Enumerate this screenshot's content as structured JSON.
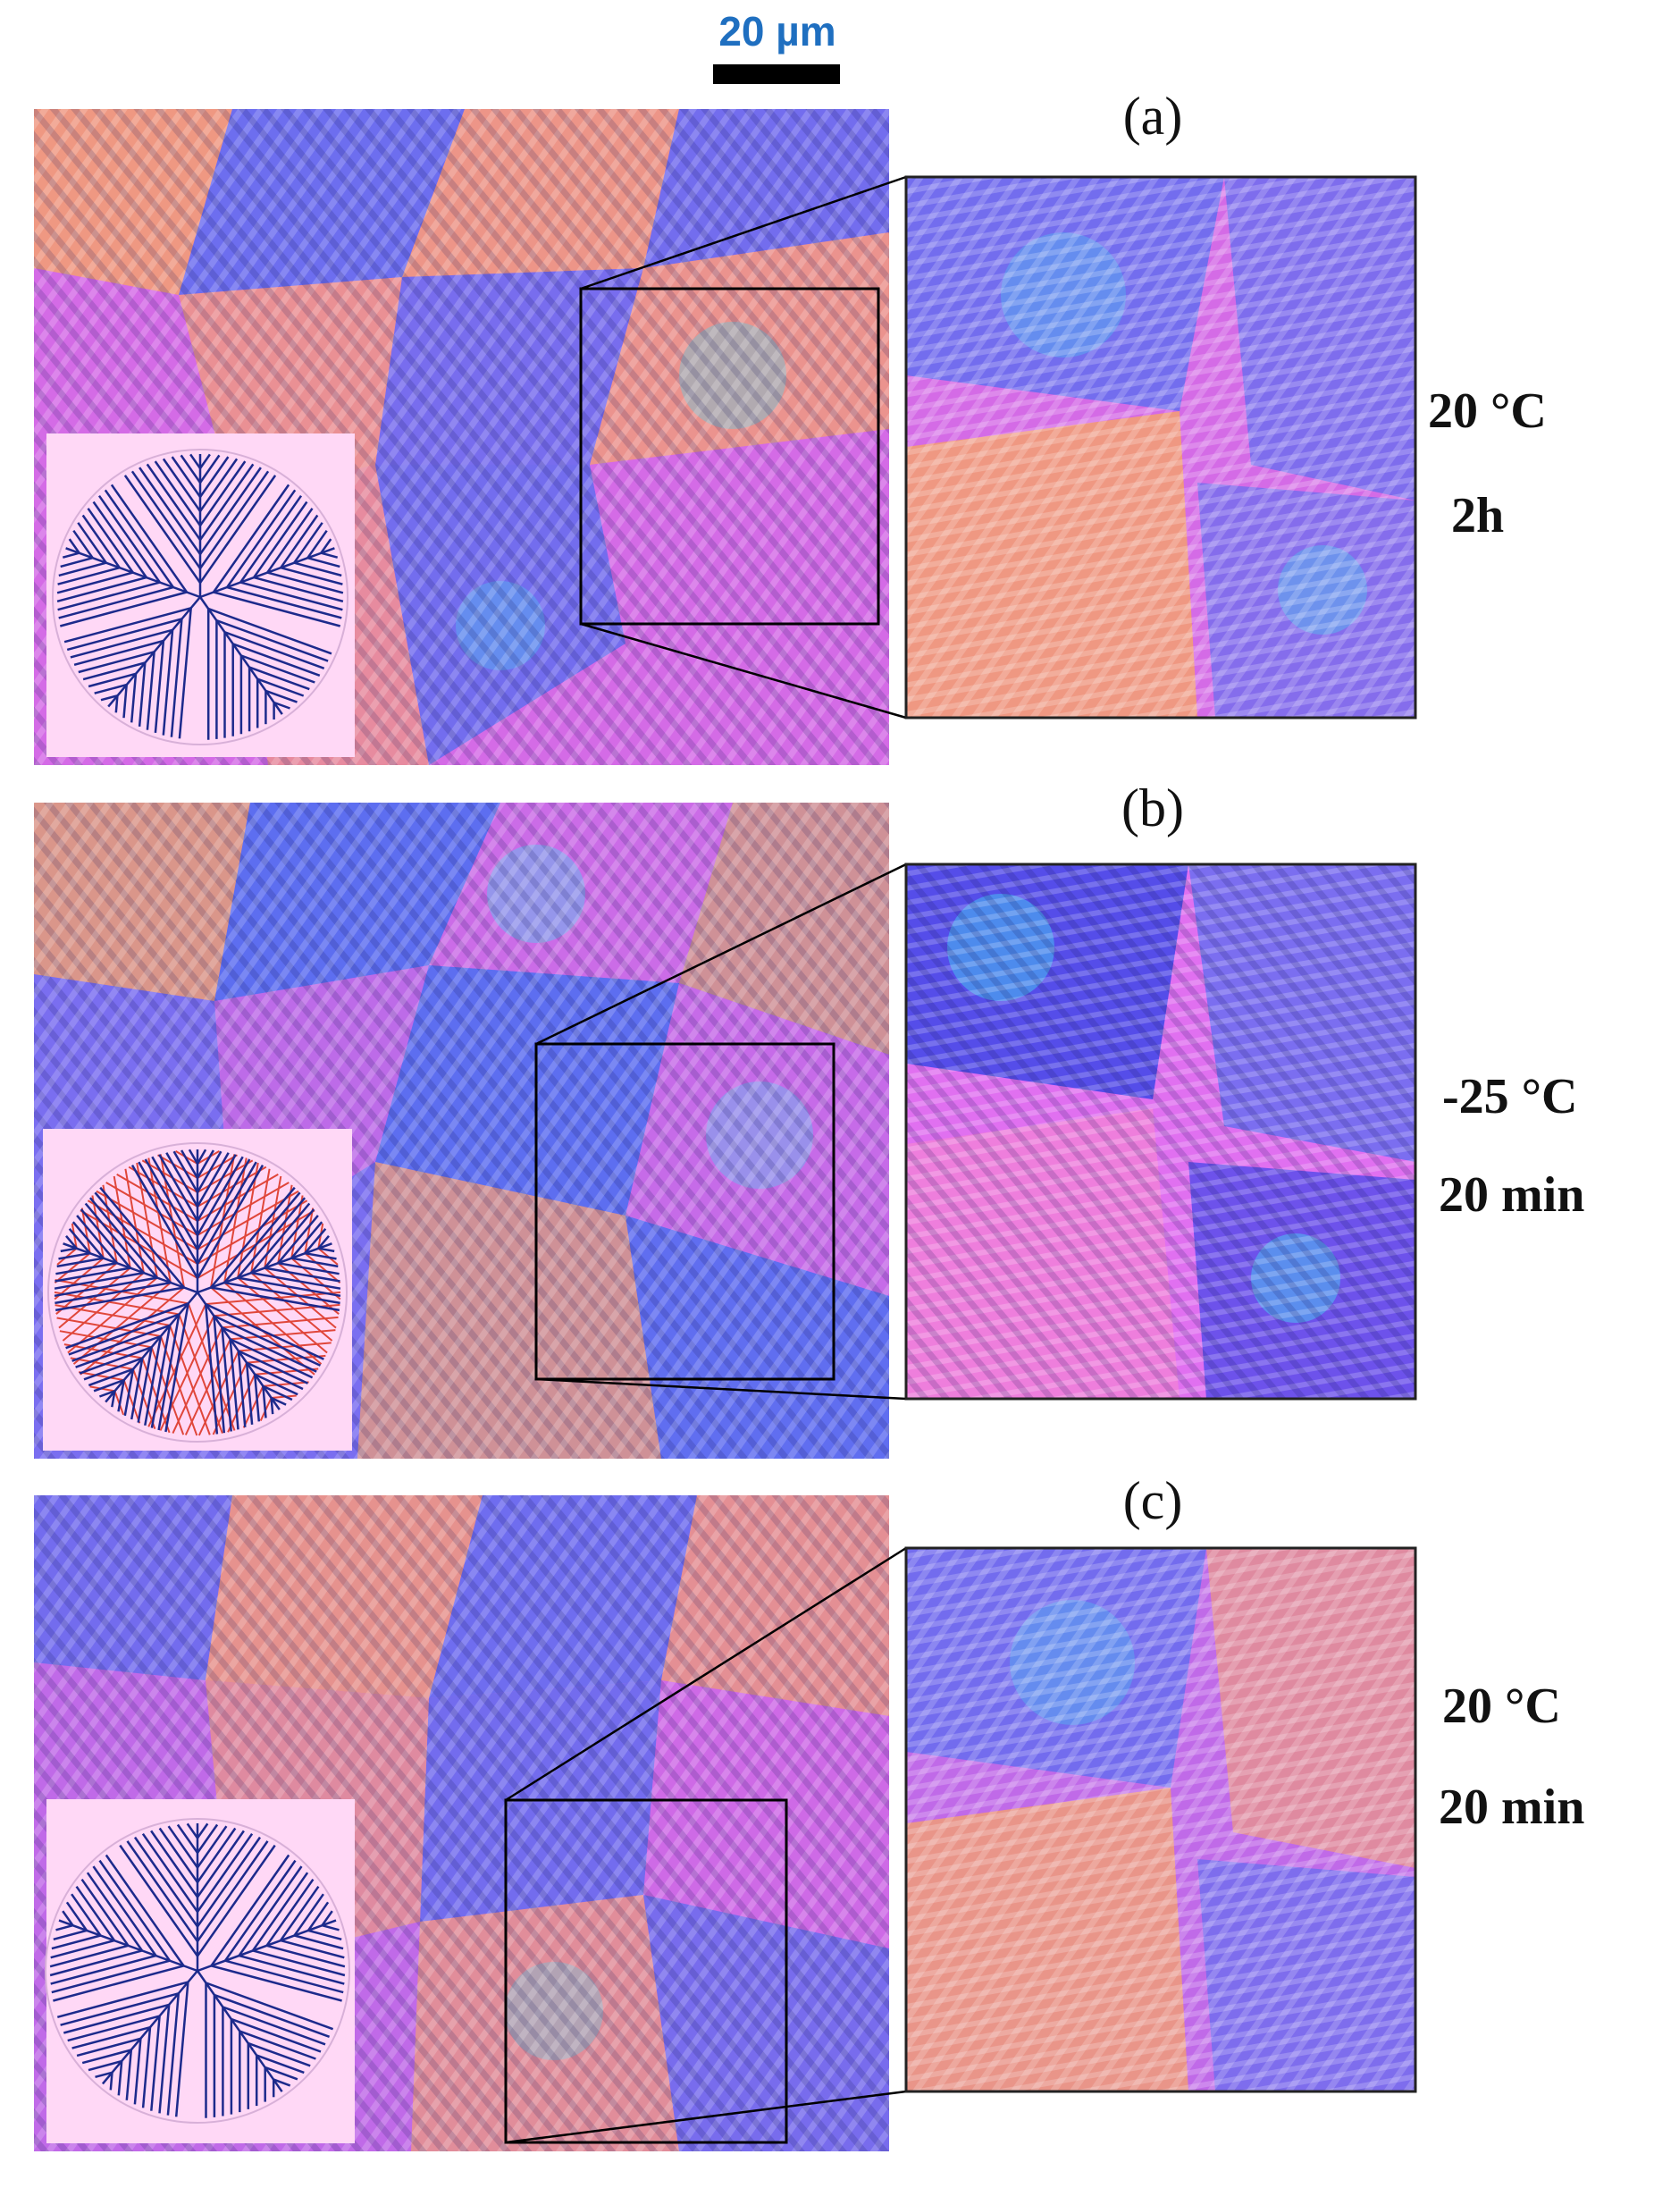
{
  "scale_bar": {
    "label": "20 µm"
  },
  "colors": {
    "magenta": "#d46be6",
    "blue": "#5a6ef0",
    "orange": "#f3a070",
    "cyan": "#44d6f2",
    "inset_bg": "#ffd8f6",
    "tree_blue": "#1c2a8c",
    "tree_red": "#e0463a"
  },
  "panels": [
    {
      "letter": "(a)",
      "temperature": "20 °C",
      "time": "2h"
    },
    {
      "letter": "(b)",
      "temperature": "-25 °C",
      "time": "20 min"
    },
    {
      "letter": "(c)",
      "temperature": "20 °C",
      "time": "20 min"
    }
  ]
}
